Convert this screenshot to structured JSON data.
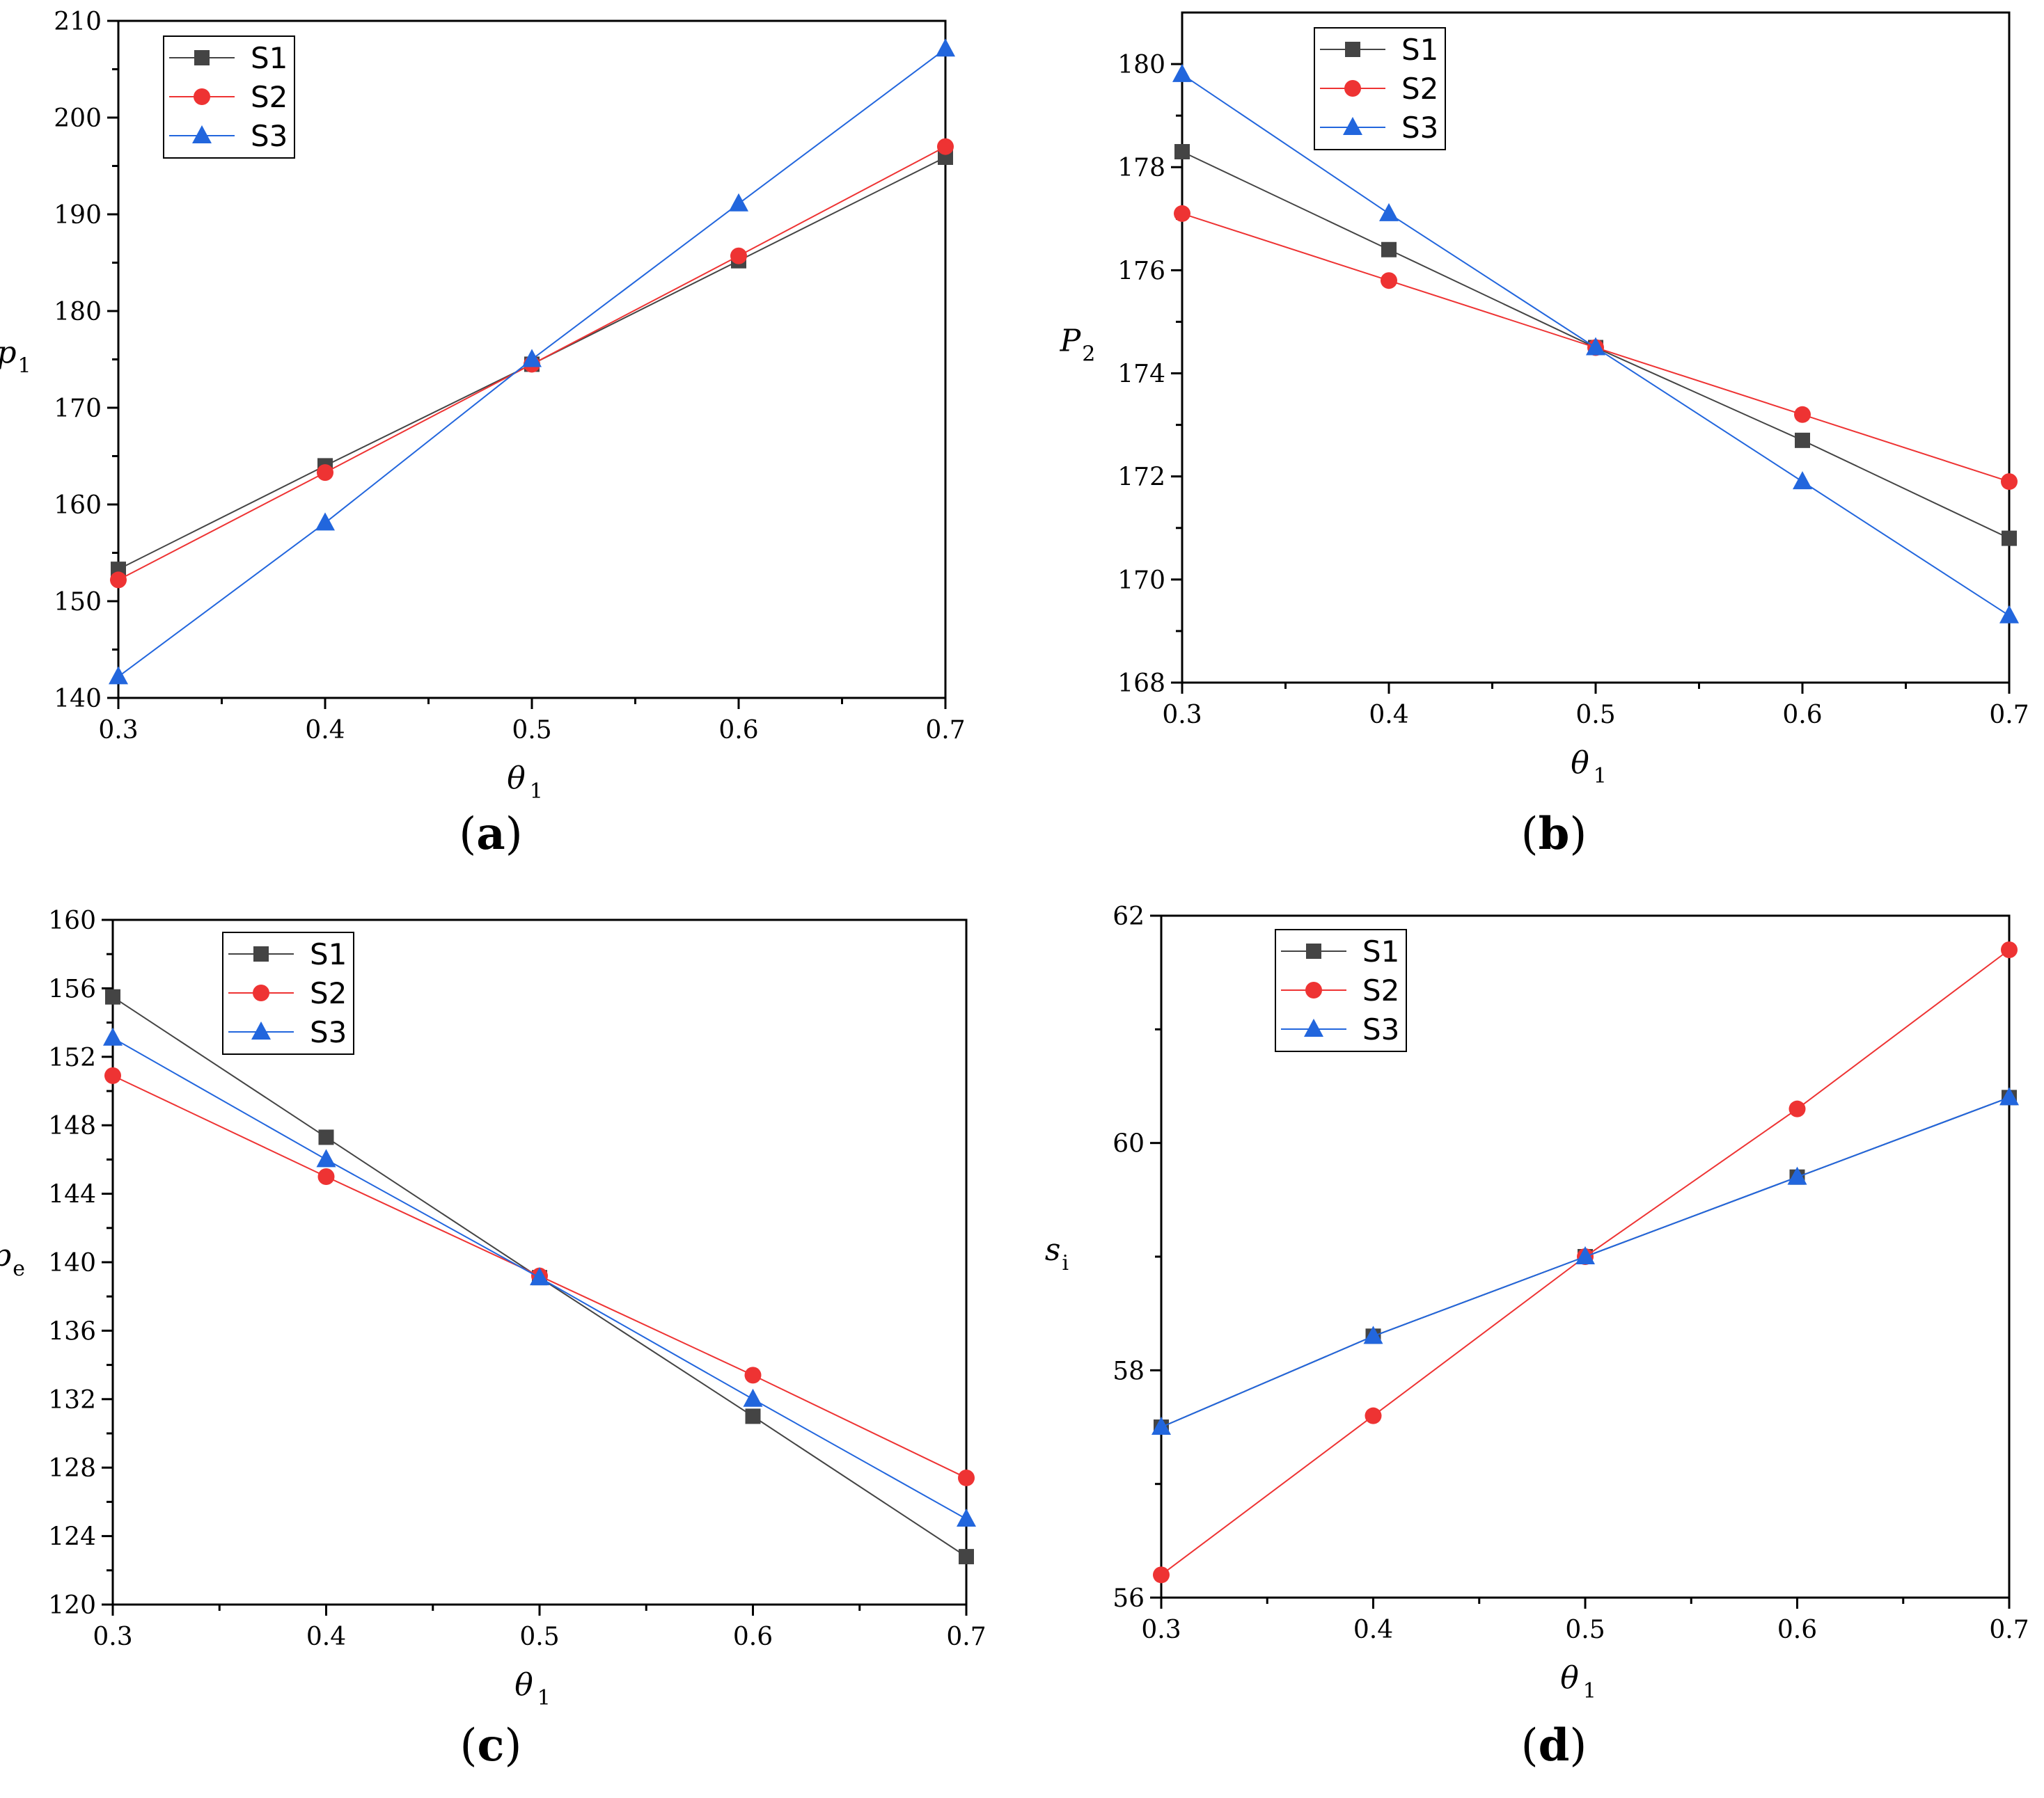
{
  "colors": {
    "S1": "#444444",
    "S2": "#ee3333",
    "S3": "#2266dd"
  },
  "chart_data": [
    {
      "type": "line",
      "id": "a",
      "caption": "a",
      "xlabel": "θ",
      "xlabel_sub": "1",
      "ylabel": "p",
      "ylabel_sub": "1",
      "xlim": [
        0.3,
        0.7
      ],
      "ylim": [
        140,
        210
      ],
      "xticks": [
        "0.3",
        "0.4",
        "0.5",
        "0.6",
        "0.7"
      ],
      "yticks": [
        "140",
        "150",
        "160",
        "170",
        "180",
        "190",
        "200",
        "210"
      ],
      "x": [
        0.3,
        0.4,
        0.5,
        0.6,
        0.7
      ],
      "series": [
        {
          "name": "S1",
          "marker": "square",
          "values": [
            153.3,
            164.0,
            174.5,
            185.2,
            195.9
          ]
        },
        {
          "name": "S2",
          "marker": "circle",
          "values": [
            152.2,
            163.3,
            174.5,
            185.7,
            197.0
          ]
        },
        {
          "name": "S3",
          "marker": "triangle",
          "values": [
            142.2,
            158.1,
            175.0,
            191.1,
            207.1
          ]
        }
      ],
      "legend": [
        "S1",
        "S2",
        "S3"
      ],
      "legend_position": "top-left"
    },
    {
      "type": "line",
      "id": "b",
      "caption": "b",
      "xlabel": "θ",
      "xlabel_sub": "1",
      "ylabel": "P",
      "ylabel_sub": "2",
      "xlim": [
        0.3,
        0.7
      ],
      "ylim": [
        168,
        181
      ],
      "xticks": [
        "0.3",
        "0.4",
        "0.5",
        "0.6",
        "0.7"
      ],
      "yticks": [
        "168",
        "170",
        "172",
        "174",
        "176",
        "178",
        "180"
      ],
      "x": [
        0.3,
        0.4,
        0.5,
        0.6,
        0.7
      ],
      "series": [
        {
          "name": "S1",
          "marker": "square",
          "values": [
            178.3,
            176.4,
            174.5,
            172.7,
            170.8
          ]
        },
        {
          "name": "S2",
          "marker": "circle",
          "values": [
            177.1,
            175.8,
            174.5,
            173.2,
            171.9
          ]
        },
        {
          "name": "S3",
          "marker": "triangle",
          "values": [
            179.8,
            177.1,
            174.5,
            171.9,
            169.3
          ]
        }
      ],
      "legend": [
        "S1",
        "S2",
        "S3"
      ],
      "legend_position": "top-left"
    },
    {
      "type": "line",
      "id": "c",
      "caption": "c",
      "xlabel": "θ",
      "xlabel_sub": "1",
      "ylabel": "p",
      "ylabel_sub": "e",
      "xlim": [
        0.3,
        0.7
      ],
      "ylim": [
        120,
        160
      ],
      "xticks": [
        "0.3",
        "0.4",
        "0.5",
        "0.6",
        "0.7"
      ],
      "yticks": [
        "120",
        "124",
        "128",
        "132",
        "136",
        "140",
        "144",
        "148",
        "152",
        "156",
        "160"
      ],
      "x": [
        0.3,
        0.4,
        0.5,
        0.6,
        0.7
      ],
      "series": [
        {
          "name": "S1",
          "marker": "square",
          "values": [
            155.5,
            147.3,
            139.1,
            131.0,
            122.8
          ]
        },
        {
          "name": "S2",
          "marker": "circle",
          "values": [
            150.9,
            145.0,
            139.2,
            133.4,
            127.4
          ]
        },
        {
          "name": "S3",
          "marker": "triangle",
          "values": [
            153.1,
            146.0,
            139.1,
            132.0,
            125.0
          ]
        }
      ],
      "legend": [
        "S1",
        "S2",
        "S3"
      ],
      "legend_position": "top-left"
    },
    {
      "type": "line",
      "id": "d",
      "caption": "d",
      "xlabel": "θ",
      "xlabel_sub": "1",
      "ylabel": "s",
      "ylabel_sub": "i",
      "xlim": [
        0.3,
        0.7
      ],
      "ylim": [
        56,
        62
      ],
      "xticks": [
        "0.3",
        "0.4",
        "0.5",
        "0.6",
        "0.7"
      ],
      "yticks": [
        "56",
        "58",
        "60",
        "62"
      ],
      "x": [
        0.3,
        0.4,
        0.5,
        0.6,
        0.7
      ],
      "series": [
        {
          "name": "S1",
          "marker": "square",
          "values": [
            57.5,
            58.3,
            59.0,
            59.7,
            60.4
          ]
        },
        {
          "name": "S2",
          "marker": "circle",
          "values": [
            56.2,
            57.6,
            59.0,
            60.3,
            61.7
          ]
        },
        {
          "name": "S3",
          "marker": "triangle",
          "values": [
            57.5,
            58.3,
            59.0,
            59.7,
            60.4
          ]
        }
      ],
      "legend": [
        "S1",
        "S2",
        "S3"
      ],
      "legend_position": "top-left"
    }
  ]
}
